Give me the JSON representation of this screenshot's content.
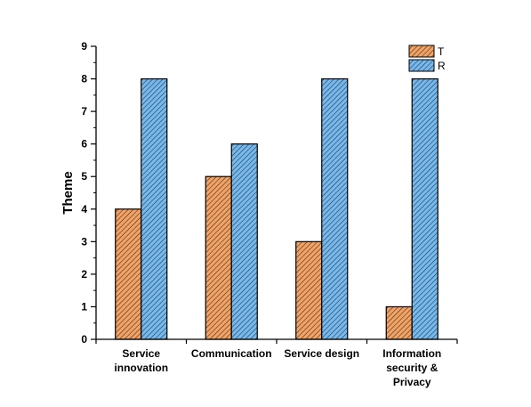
{
  "chart_data": {
    "type": "bar",
    "categories": [
      [
        "Service",
        "innovation"
      ],
      [
        "Communication"
      ],
      [
        "Service design"
      ],
      [
        "Information",
        "security &",
        "Privacy"
      ]
    ],
    "series": [
      {
        "name": "T",
        "values": [
          4,
          5,
          3,
          1
        ],
        "color": "#f4a261"
      },
      {
        "name": "R",
        "values": [
          8,
          6,
          8,
          8
        ],
        "color": "#74b9f0"
      }
    ],
    "xlabel": "",
    "ylabel": "Theme",
    "ylim": [
      0,
      9
    ],
    "yticks": [
      0,
      1,
      2,
      3,
      4,
      5,
      6,
      7,
      8,
      9
    ],
    "grid": false,
    "legend_position": "top-right",
    "bar_pattern": "diagonal-hatch"
  }
}
